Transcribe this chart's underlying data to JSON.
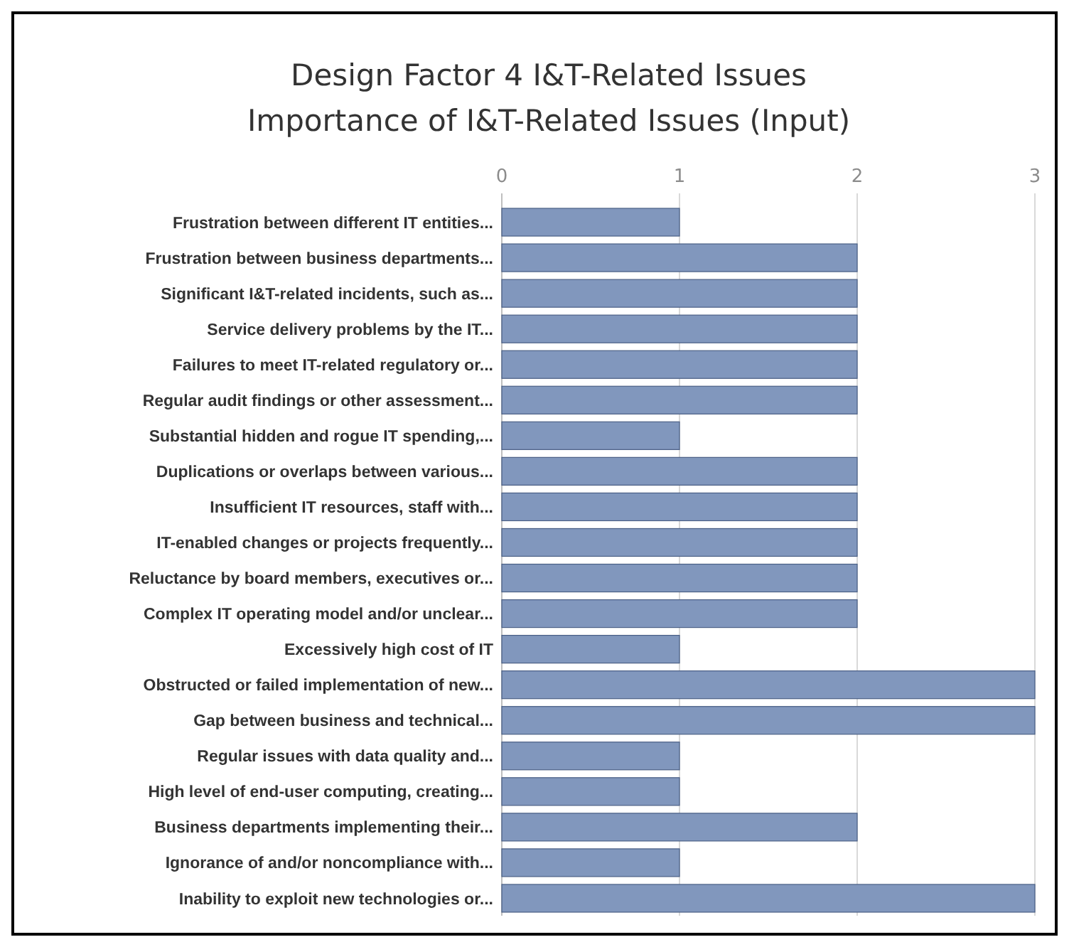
{
  "chart_data": {
    "type": "bar",
    "orientation": "horizontal",
    "title": "Design Factor 4 I&T-Related Issues",
    "subtitle": "Importance of I&T-Related Issues (Input)",
    "categories": [
      "Frustration between different IT entities...",
      "Frustration between business departments...",
      "Significant I&T-related incidents, such as...",
      "Service delivery problems by the IT...",
      "Failures to meet IT-related regulatory or...",
      "Regular audit findings or other assessment...",
      "Substantial hidden and rogue IT spending,...",
      "Duplications or overlaps between various...",
      "Insufficient IT resources, staff with...",
      "IT-enabled changes or projects frequently...",
      "Reluctance by board members, executives or...",
      "Complex IT operating model and/or unclear...",
      "Excessively high cost of IT",
      "Obstructed or failed implementation of new...",
      "Gap between business and technical...",
      "Regular issues with data quality and...",
      "High level of end-user computing, creating...",
      "Business departments implementing their...",
      "Ignorance of and/or noncompliance with...",
      "Inability to exploit new technologies or..."
    ],
    "values": [
      1,
      2,
      2,
      2,
      2,
      2,
      1,
      2,
      2,
      2,
      2,
      2,
      1,
      3,
      3,
      1,
      1,
      2,
      1,
      3
    ],
    "color": "#8197bd",
    "xlim": [
      0,
      3
    ],
    "xticks": [
      0,
      1,
      2,
      3
    ],
    "grid": "x"
  }
}
